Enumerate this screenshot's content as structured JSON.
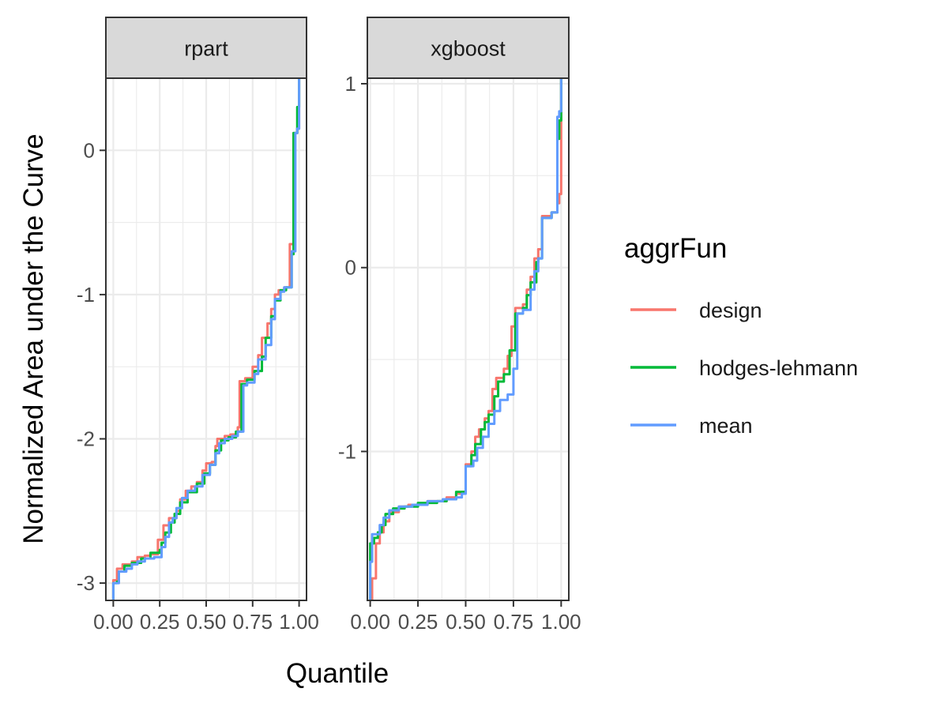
{
  "chart_data": {
    "type": "line",
    "x_label": "Quantile",
    "y_label": "Normalized Area under the Curve",
    "legend": {
      "title": "aggrFun",
      "entries": [
        {
          "name": "design",
          "color": "#F8766D"
        },
        {
          "name": "hodges-lehmann",
          "color": "#00BA38"
        },
        {
          "name": "mean",
          "color": "#619CFF"
        }
      ]
    },
    "panels": [
      {
        "title": "rpart",
        "xlim": [
          -0.04,
          1.04
        ],
        "ylim": [
          -3.12,
          0.5
        ],
        "x_ticks": [
          0,
          0.25,
          0.5,
          0.75,
          1
        ],
        "x_tick_labels": [
          "0.00",
          "0.25",
          "0.50",
          "0.75",
          "1.00"
        ],
        "y_ticks": [
          -3,
          -2,
          -1,
          0
        ],
        "y_tick_labels": [
          "-3",
          "-2",
          "-1",
          "0"
        ],
        "y_minor": [
          -2.5,
          -1.5,
          -0.5
        ],
        "series": [
          {
            "name": "design",
            "points": [
              [
                0.0,
                -3.12
              ],
              [
                0.0,
                -2.98
              ],
              [
                0.02,
                -2.98
              ],
              [
                0.02,
                -2.9
              ],
              [
                0.05,
                -2.9
              ],
              [
                0.05,
                -2.87
              ],
              [
                0.1,
                -2.85
              ],
              [
                0.13,
                -2.82
              ],
              [
                0.17,
                -2.81
              ],
              [
                0.2,
                -2.8
              ],
              [
                0.24,
                -2.78
              ],
              [
                0.24,
                -2.7
              ],
              [
                0.27,
                -2.7
              ],
              [
                0.27,
                -2.6
              ],
              [
                0.3,
                -2.58
              ],
              [
                0.3,
                -2.55
              ],
              [
                0.34,
                -2.5
              ],
              [
                0.36,
                -2.42
              ],
              [
                0.39,
                -2.36
              ],
              [
                0.42,
                -2.33
              ],
              [
                0.45,
                -2.3
              ],
              [
                0.48,
                -2.22
              ],
              [
                0.5,
                -2.17
              ],
              [
                0.53,
                -2.16
              ],
              [
                0.55,
                -2.05
              ],
              [
                0.56,
                -2.0
              ],
              [
                0.6,
                -1.98
              ],
              [
                0.63,
                -1.97
              ],
              [
                0.67,
                -1.92
              ],
              [
                0.68,
                -1.6
              ],
              [
                0.71,
                -1.58
              ],
              [
                0.75,
                -1.5
              ],
              [
                0.78,
                -1.42
              ],
              [
                0.8,
                -1.3
              ],
              [
                0.83,
                -1.2
              ],
              [
                0.85,
                -1.1
              ],
              [
                0.87,
                -1.0
              ],
              [
                0.89,
                -0.97
              ],
              [
                0.92,
                -0.95
              ],
              [
                0.95,
                -0.65
              ],
              [
                0.97,
                0.12
              ],
              [
                0.99,
                0.15
              ],
              [
                1.0,
                0.5
              ]
            ]
          },
          {
            "name": "hodges-lehmann",
            "points": [
              [
                0.0,
                -3.12
              ],
              [
                0.0,
                -3.0
              ],
              [
                0.02,
                -2.99
              ],
              [
                0.03,
                -2.92
              ],
              [
                0.06,
                -2.88
              ],
              [
                0.1,
                -2.86
              ],
              [
                0.15,
                -2.83
              ],
              [
                0.2,
                -2.79
              ],
              [
                0.25,
                -2.77
              ],
              [
                0.26,
                -2.72
              ],
              [
                0.28,
                -2.65
              ],
              [
                0.31,
                -2.58
              ],
              [
                0.33,
                -2.52
              ],
              [
                0.36,
                -2.44
              ],
              [
                0.4,
                -2.37
              ],
              [
                0.45,
                -2.31
              ],
              [
                0.49,
                -2.24
              ],
              [
                0.52,
                -2.18
              ],
              [
                0.55,
                -2.08
              ],
              [
                0.58,
                -2.01
              ],
              [
                0.62,
                -1.99
              ],
              [
                0.66,
                -1.95
              ],
              [
                0.69,
                -1.92
              ],
              [
                0.69,
                -1.62
              ],
              [
                0.72,
                -1.59
              ],
              [
                0.76,
                -1.53
              ],
              [
                0.8,
                -1.43
              ],
              [
                0.82,
                -1.3
              ],
              [
                0.85,
                -1.15
              ],
              [
                0.87,
                -1.04
              ],
              [
                0.9,
                -0.97
              ],
              [
                0.93,
                -0.95
              ],
              [
                0.96,
                -0.72
              ],
              [
                0.97,
                0.12
              ],
              [
                0.99,
                0.3
              ],
              [
                1.0,
                0.5
              ]
            ]
          },
          {
            "name": "mean",
            "points": [
              [
                0.0,
                -3.12
              ],
              [
                0.0,
                -3.0
              ],
              [
                0.03,
                -3.0
              ],
              [
                0.03,
                -2.92
              ],
              [
                0.07,
                -2.9
              ],
              [
                0.1,
                -2.87
              ],
              [
                0.13,
                -2.85
              ],
              [
                0.17,
                -2.83
              ],
              [
                0.22,
                -2.82
              ],
              [
                0.26,
                -2.75
              ],
              [
                0.28,
                -2.68
              ],
              [
                0.3,
                -2.58
              ],
              [
                0.32,
                -2.55
              ],
              [
                0.34,
                -2.48
              ],
              [
                0.37,
                -2.41
              ],
              [
                0.4,
                -2.36
              ],
              [
                0.44,
                -2.33
              ],
              [
                0.48,
                -2.25
              ],
              [
                0.52,
                -2.18
              ],
              [
                0.55,
                -2.1
              ],
              [
                0.57,
                -2.03
              ],
              [
                0.6,
                -2.0
              ],
              [
                0.64,
                -1.98
              ],
              [
                0.67,
                -1.95
              ],
              [
                0.7,
                -1.92
              ],
              [
                0.7,
                -1.63
              ],
              [
                0.72,
                -1.61
              ],
              [
                0.76,
                -1.55
              ],
              [
                0.78,
                -1.45
              ],
              [
                0.82,
                -1.35
              ],
              [
                0.85,
                -1.17
              ],
              [
                0.87,
                -1.03
              ],
              [
                0.9,
                -0.98
              ],
              [
                0.92,
                -0.95
              ],
              [
                0.96,
                -0.7
              ],
              [
                0.98,
                0.12
              ],
              [
                0.99,
                0.15
              ],
              [
                1.0,
                0.5
              ]
            ]
          }
        ]
      },
      {
        "title": "xgboost",
        "xlim": [
          -0.015,
          1.04
        ],
        "ylim": [
          -1.81,
          1.03
        ],
        "x_ticks": [
          0,
          0.25,
          0.5,
          0.75,
          1
        ],
        "x_tick_labels": [
          "0.00",
          "0.25",
          "0.50",
          "0.75",
          "1.00"
        ],
        "y_ticks": [
          -1,
          0,
          1
        ],
        "y_tick_labels": [
          "-1",
          "0",
          "1"
        ],
        "y_minor": [
          -1.5,
          -0.5,
          0.5
        ],
        "series": [
          {
            "name": "design",
            "points": [
              [
                0.0,
                -1.81
              ],
              [
                0.01,
                -1.81
              ],
              [
                0.01,
                -1.69
              ],
              [
                0.03,
                -1.69
              ],
              [
                0.03,
                -1.5
              ],
              [
                0.05,
                -1.44
              ],
              [
                0.07,
                -1.38
              ],
              [
                0.1,
                -1.33
              ],
              [
                0.15,
                -1.3
              ],
              [
                0.2,
                -1.29
              ],
              [
                0.3,
                -1.27
              ],
              [
                0.4,
                -1.25
              ],
              [
                0.45,
                -1.23
              ],
              [
                0.48,
                -1.22
              ],
              [
                0.5,
                -1.2
              ],
              [
                0.5,
                -1.07
              ],
              [
                0.53,
                -1.0
              ],
              [
                0.55,
                -0.92
              ],
              [
                0.57,
                -0.88
              ],
              [
                0.6,
                -0.82
              ],
              [
                0.62,
                -0.78
              ],
              [
                0.64,
                -0.66
              ],
              [
                0.66,
                -0.6
              ],
              [
                0.7,
                -0.55
              ],
              [
                0.72,
                -0.48
              ],
              [
                0.74,
                -0.32
              ],
              [
                0.76,
                -0.22
              ],
              [
                0.8,
                -0.2
              ],
              [
                0.82,
                -0.12
              ],
              [
                0.84,
                -0.05
              ],
              [
                0.86,
                0.05
              ],
              [
                0.88,
                0.1
              ],
              [
                0.9,
                0.28
              ],
              [
                0.95,
                0.3
              ],
              [
                0.98,
                0.35
              ],
              [
                0.99,
                0.4
              ],
              [
                1.0,
                1.03
              ]
            ]
          },
          {
            "name": "hodges-lehmann",
            "points": [
              [
                0.0,
                -1.81
              ],
              [
                0.0,
                -1.5
              ],
              [
                0.02,
                -1.47
              ],
              [
                0.04,
                -1.44
              ],
              [
                0.06,
                -1.4
              ],
              [
                0.08,
                -1.34
              ],
              [
                0.12,
                -1.31
              ],
              [
                0.18,
                -1.3
              ],
              [
                0.25,
                -1.28
              ],
              [
                0.35,
                -1.27
              ],
              [
                0.4,
                -1.26
              ],
              [
                0.45,
                -1.22
              ],
              [
                0.5,
                -1.2
              ],
              [
                0.5,
                -1.08
              ],
              [
                0.53,
                -1.02
              ],
              [
                0.55,
                -0.96
              ],
              [
                0.58,
                -0.88
              ],
              [
                0.6,
                -0.84
              ],
              [
                0.62,
                -0.8
              ],
              [
                0.65,
                -0.7
              ],
              [
                0.67,
                -0.62
              ],
              [
                0.7,
                -0.58
              ],
              [
                0.73,
                -0.45
              ],
              [
                0.76,
                -0.25
              ],
              [
                0.8,
                -0.22
              ],
              [
                0.82,
                -0.15
              ],
              [
                0.84,
                -0.08
              ],
              [
                0.87,
                0.03
              ],
              [
                0.88,
                0.05
              ],
              [
                0.9,
                0.27
              ],
              [
                0.95,
                0.3
              ],
              [
                0.98,
                0.7
              ],
              [
                0.99,
                0.8
              ],
              [
                1.0,
                1.03
              ]
            ]
          },
          {
            "name": "mean",
            "points": [
              [
                0.0,
                -1.81
              ],
              [
                0.0,
                -1.6
              ],
              [
                0.01,
                -1.6
              ],
              [
                0.01,
                -1.45
              ],
              [
                0.03,
                -1.45
              ],
              [
                0.05,
                -1.4
              ],
              [
                0.07,
                -1.36
              ],
              [
                0.1,
                -1.32
              ],
              [
                0.15,
                -1.3
              ],
              [
                0.22,
                -1.29
              ],
              [
                0.3,
                -1.27
              ],
              [
                0.38,
                -1.26
              ],
              [
                0.45,
                -1.25
              ],
              [
                0.48,
                -1.23
              ],
              [
                0.5,
                -1.21
              ],
              [
                0.5,
                -1.08
              ],
              [
                0.54,
                -1.05
              ],
              [
                0.56,
                -0.98
              ],
              [
                0.59,
                -0.92
              ],
              [
                0.62,
                -0.85
              ],
              [
                0.65,
                -0.78
              ],
              [
                0.68,
                -0.72
              ],
              [
                0.72,
                -0.69
              ],
              [
                0.75,
                -0.55
              ],
              [
                0.77,
                -0.25
              ],
              [
                0.8,
                -0.23
              ],
              [
                0.84,
                -0.12
              ],
              [
                0.86,
                -0.02
              ],
              [
                0.88,
                0.05
              ],
              [
                0.9,
                0.27
              ],
              [
                0.95,
                0.3
              ],
              [
                0.98,
                0.82
              ],
              [
                0.99,
                0.85
              ],
              [
                1.0,
                1.03
              ]
            ]
          }
        ]
      }
    ]
  }
}
